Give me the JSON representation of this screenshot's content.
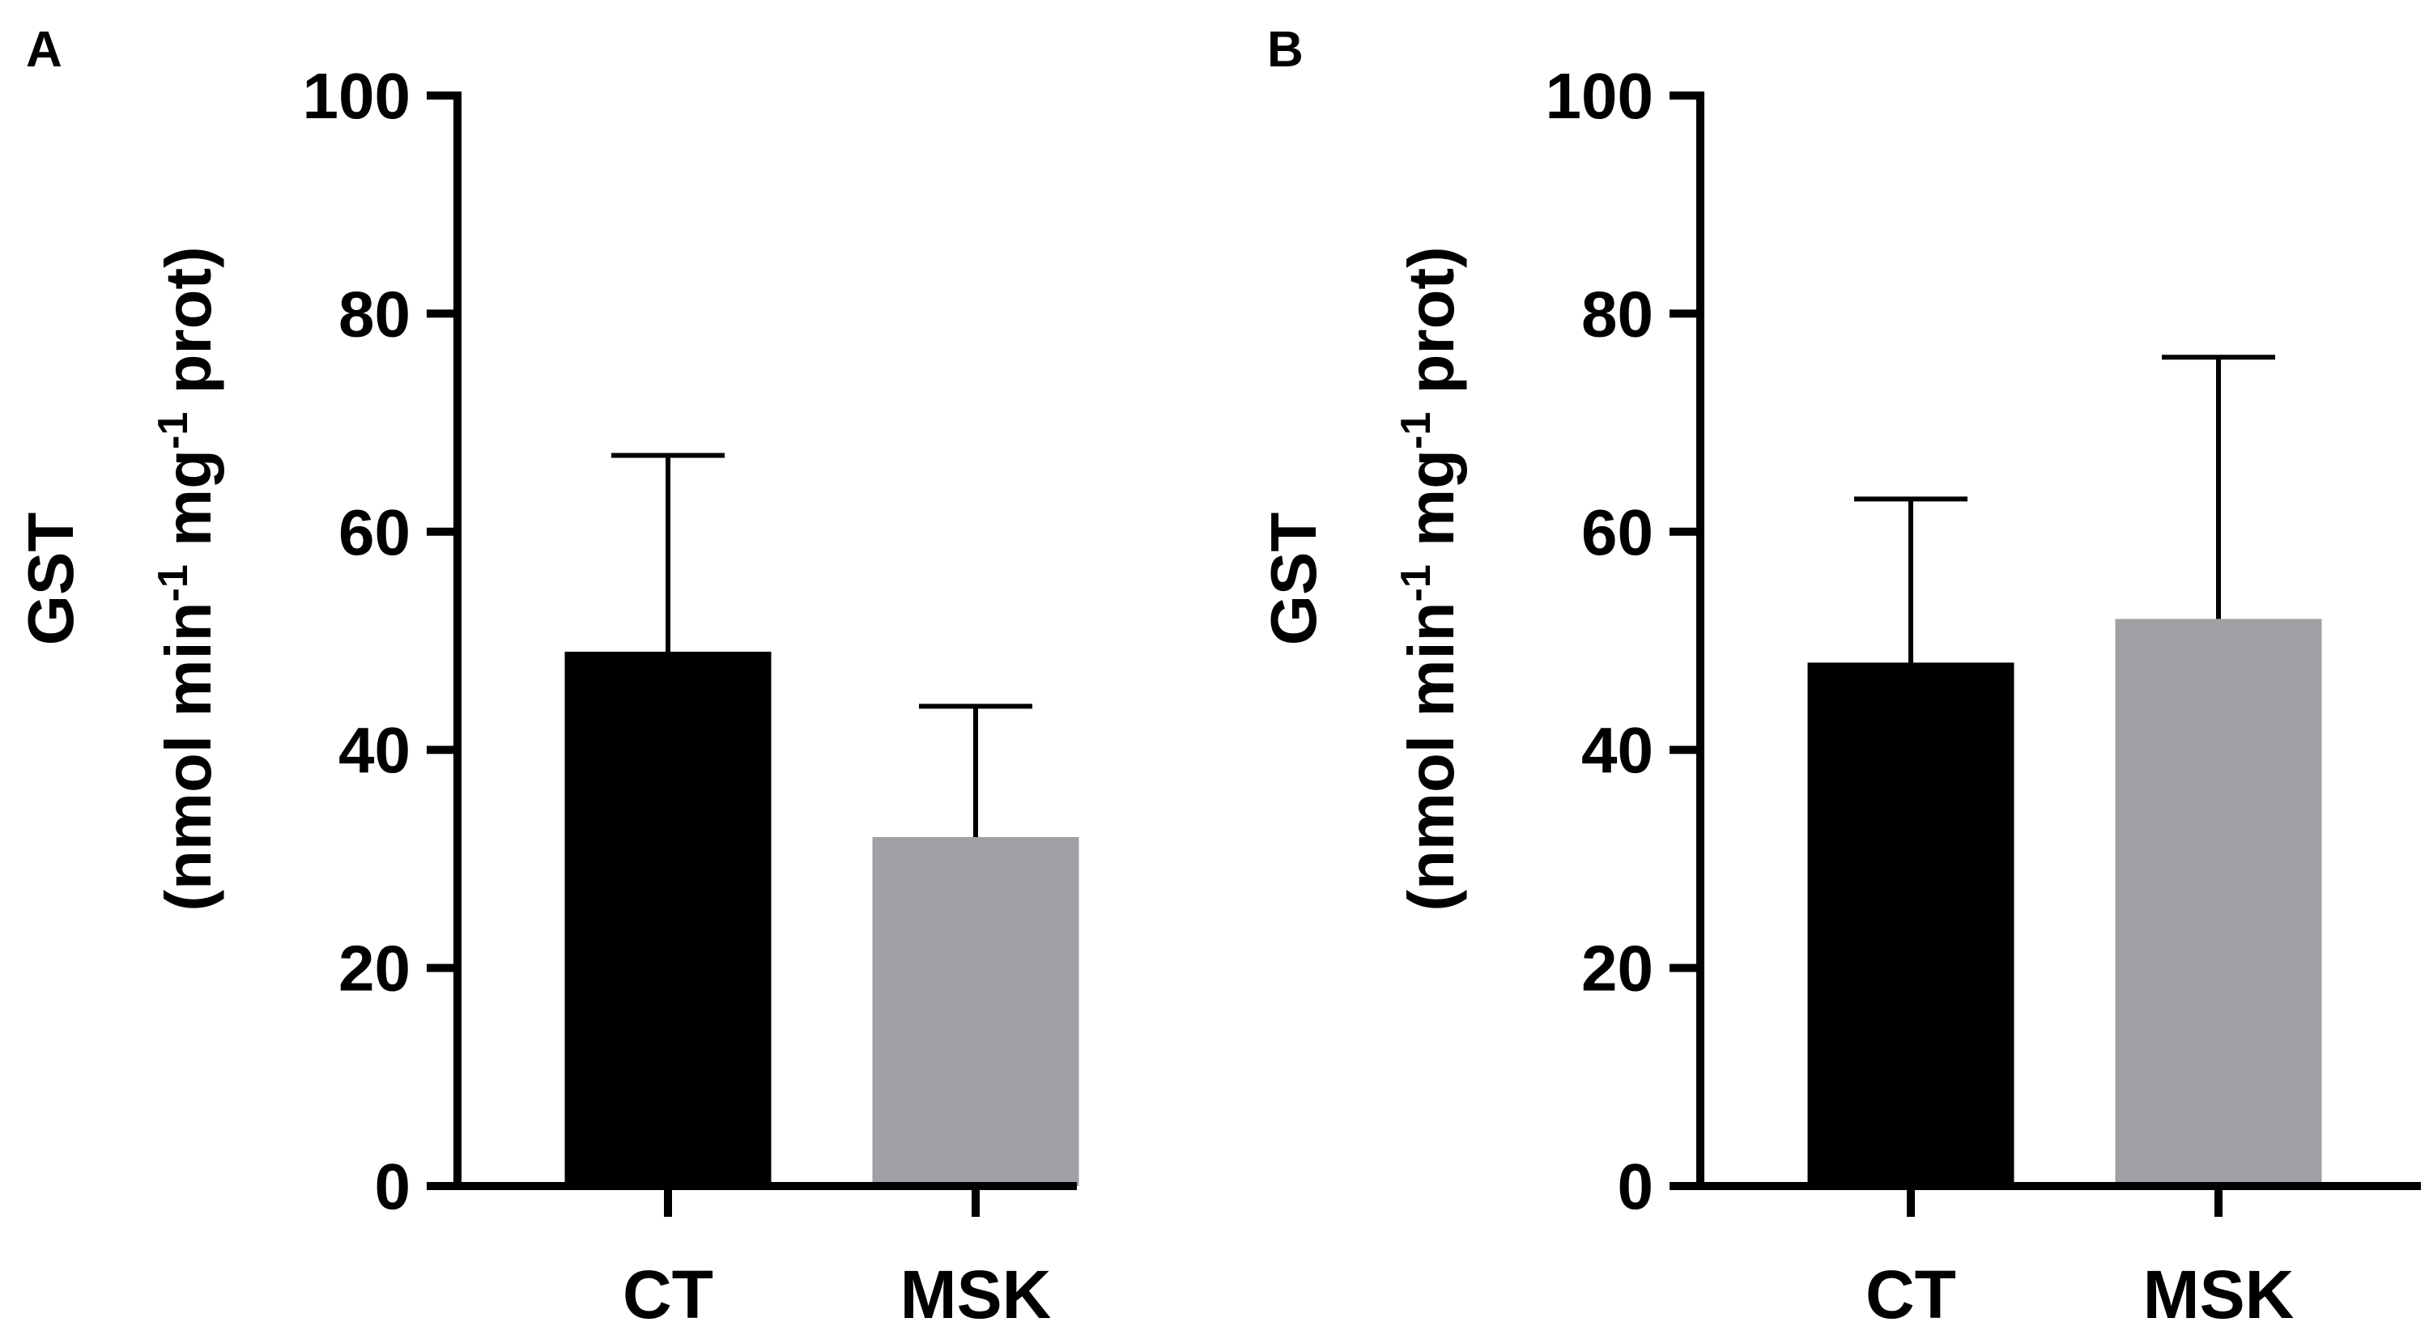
{
  "chart_data": [
    {
      "panel": "A",
      "type": "bar",
      "categories": [
        "CT",
        "MSK"
      ],
      "values": [
        49,
        32
      ],
      "errors": [
        18,
        12
      ],
      "colors": [
        "#000000",
        "#a0a0a4"
      ],
      "ylabel_line1": "GST",
      "ylabel_line2_parts": [
        "(nmol min",
        "-1",
        " mg",
        "-1",
        " prot)"
      ],
      "ylim": [
        0,
        100
      ],
      "yticks": [
        0,
        20,
        40,
        60,
        80,
        100
      ],
      "ytick_labels": [
        "0",
        "20",
        "40",
        "60",
        "80",
        "100"
      ]
    },
    {
      "panel": "B",
      "type": "bar",
      "categories": [
        "CT",
        "MSK"
      ],
      "values": [
        48,
        52
      ],
      "errors": [
        15,
        24
      ],
      "colors": [
        "#000000",
        "#a0a0a4"
      ],
      "ylabel_line1": "GST",
      "ylabel_line2_parts": [
        "(nmol min",
        "-1",
        " mg",
        "-1",
        " prot)"
      ],
      "ylim": [
        0,
        100
      ],
      "yticks": [
        0,
        20,
        40,
        60,
        80,
        100
      ],
      "ytick_labels": [
        "0",
        "20",
        "40",
        "60",
        "80",
        "100"
      ]
    }
  ]
}
